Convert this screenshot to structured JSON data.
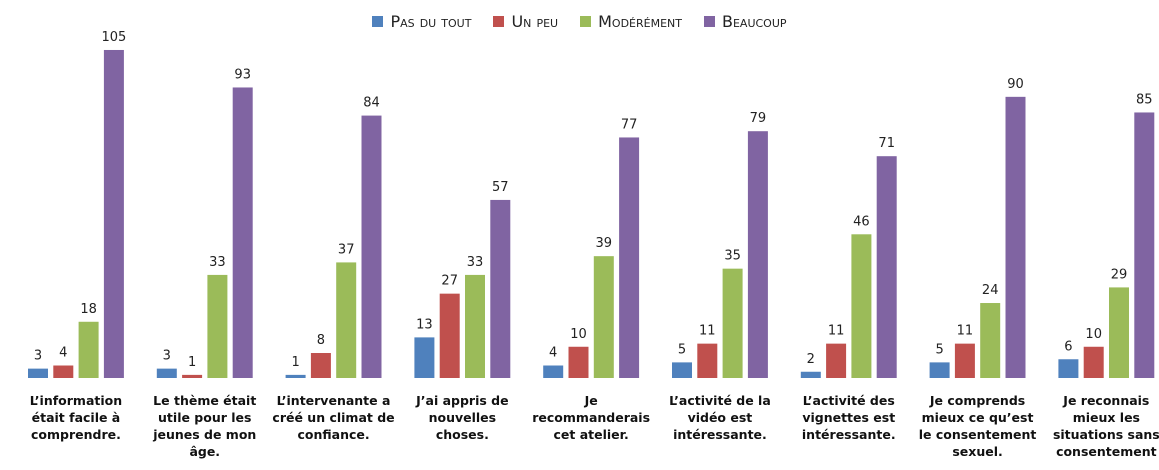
{
  "chart_data": {
    "type": "bar",
    "categories": [
      "L’information était facile à comprendre.",
      "Le thème était utile pour les jeunes de mon âge.",
      "L’intervenante a créé un climat de confiance.",
      "J’ai appris de nouvelles choses.",
      "Je recommanderais cet atelier.",
      "L’activité de la vidéo est intéressante.",
      "L’activité des vignettes est intéressante.",
      "Je comprends mieux ce qu’est le consentement sexuel.",
      "Je reconnais mieux les situations sans consentement"
    ],
    "series": [
      {
        "name": "Pas du tout",
        "color": "#4f81bd",
        "values": [
          3,
          3,
          1,
          13,
          4,
          5,
          2,
          5,
          6
        ]
      },
      {
        "name": "Un peu",
        "color": "#c0504d",
        "values": [
          4,
          1,
          8,
          27,
          10,
          11,
          11,
          11,
          10
        ]
      },
      {
        "name": "Modérément",
        "color": "#9bbb59",
        "values": [
          18,
          33,
          37,
          33,
          39,
          35,
          46,
          24,
          29
        ]
      },
      {
        "name": "Beaucoup",
        "color": "#8064a2",
        "values": [
          105,
          93,
          84,
          57,
          77,
          79,
          71,
          90,
          85
        ]
      }
    ],
    "legend": "top"
  }
}
